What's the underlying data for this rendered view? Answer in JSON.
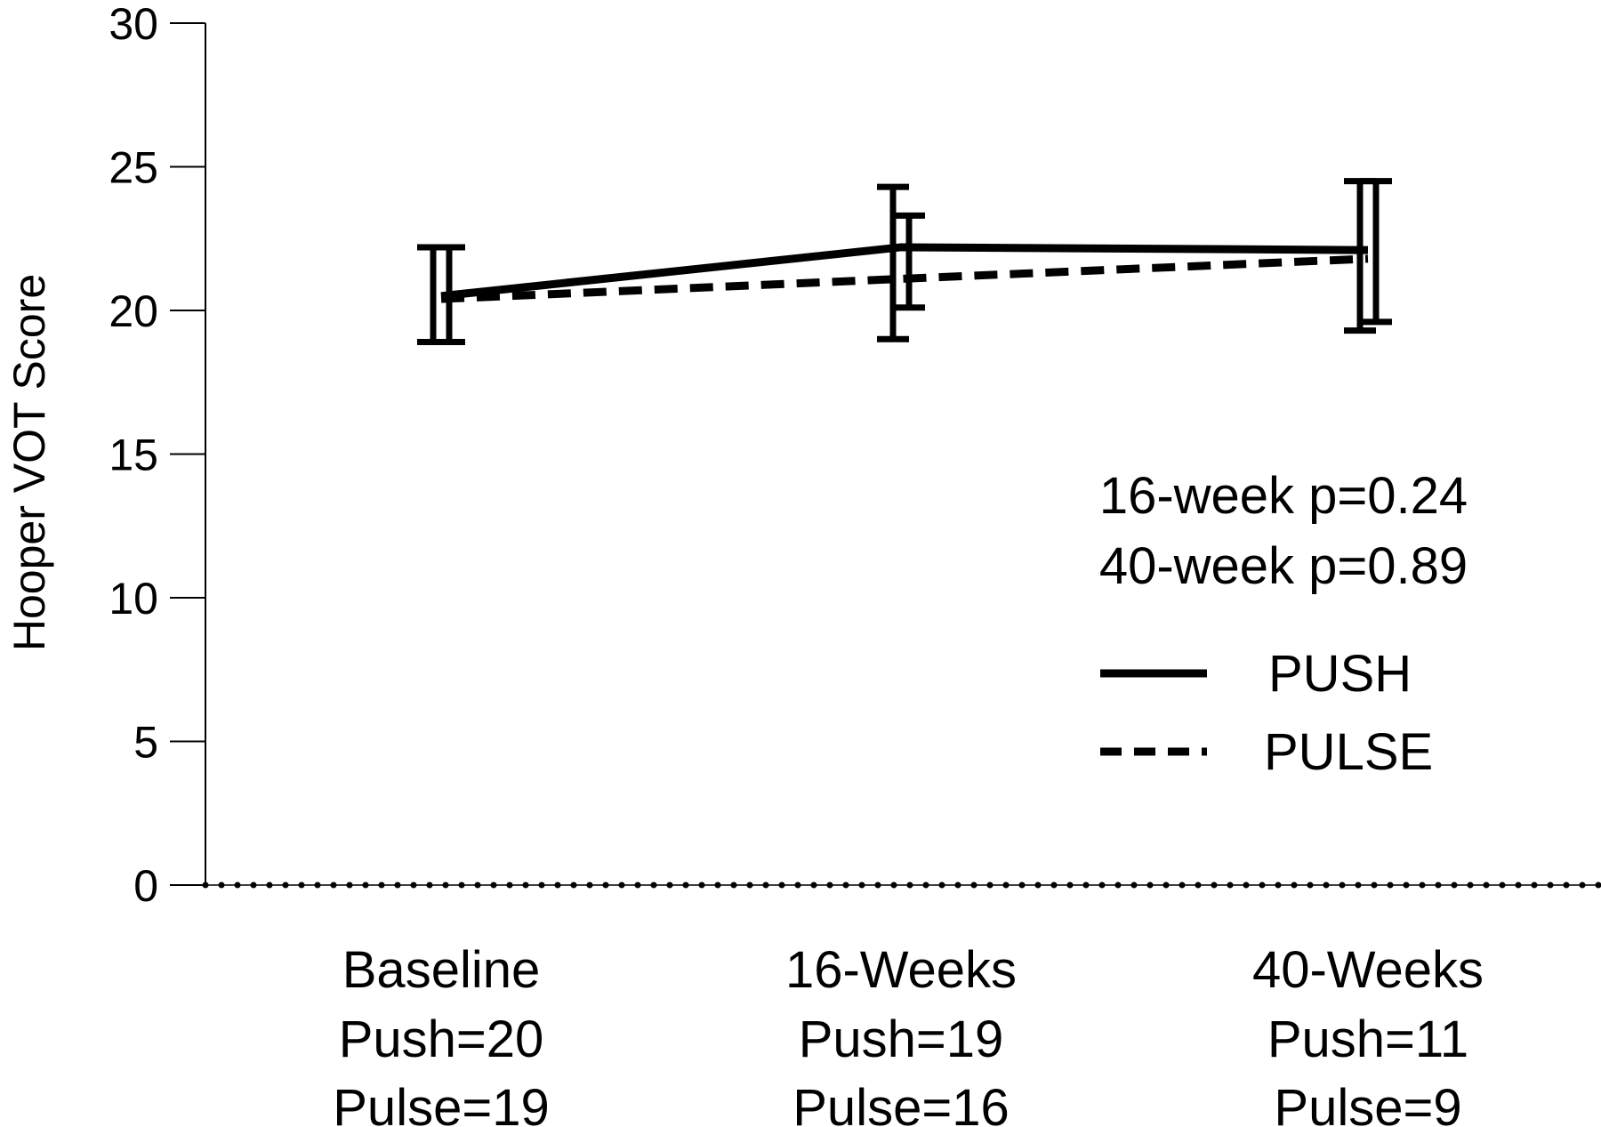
{
  "chart_data": {
    "type": "line",
    "title": "",
    "ylabel": "Hooper VOT Score",
    "xlabel": "",
    "ylim": [
      0,
      30
    ],
    "yticks": [
      0,
      5,
      10,
      15,
      20,
      25,
      30
    ],
    "categories": [
      [
        "Baseline",
        "Push=20",
        "Pulse=19"
      ],
      [
        "16-Weeks",
        "Push=19",
        "Pulse=16"
      ],
      [
        "40-Weeks",
        "Push=11",
        "Pulse=9"
      ]
    ],
    "series": [
      {
        "name": "PUSH",
        "line_style": "solid",
        "values": [
          20.5,
          22.2,
          22.1
        ],
        "error_low": [
          18.9,
          19.0,
          19.3
        ],
        "error_high": [
          22.2,
          24.3,
          24.5
        ]
      },
      {
        "name": "PULSE",
        "line_style": "dashed",
        "values": [
          20.4,
          21.1,
          21.8
        ],
        "error_low": [
          18.9,
          20.1,
          19.6
        ],
        "error_high": [
          22.2,
          23.3,
          24.5
        ]
      }
    ],
    "reference_line": {
      "y": 0,
      "style": "dotted"
    },
    "annotations": [
      "16-week p=0.24",
      "40-week p=0.89"
    ],
    "legend_position": "right",
    "grid": false
  }
}
